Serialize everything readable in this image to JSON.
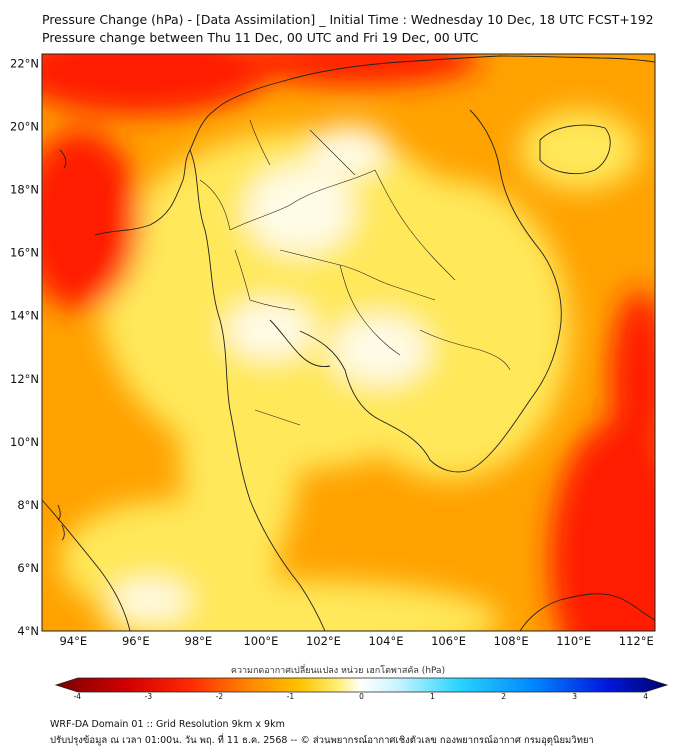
{
  "title": {
    "line1": "Pressure Change (hPa) - [Data Assimilation] _ Initial Time : Wednesday 10 Dec, 18 UTC FCST+192",
    "line2": "Pressure change between Thu 11 Dec, 00 UTC and Fri 19 Dec, 00 UTC"
  },
  "map": {
    "lat_labels": [
      "22°N",
      "20°N",
      "18°N",
      "16°N",
      "14°N",
      "12°N",
      "10°N",
      "8°N",
      "6°N",
      "4°N"
    ],
    "lon_labels": [
      "94°E",
      "96°E",
      "98°E",
      "100°E",
      "102°E",
      "104°E",
      "106°E",
      "108°E",
      "110°E",
      "112°E"
    ],
    "lat_range": [
      4,
      22.3
    ],
    "lon_range": [
      93,
      112.6
    ],
    "colors": {
      "ocean": "#ffa200",
      "land": "#ffe85a",
      "strong_fall": "#ff1e00",
      "light_core": "#fffbe6",
      "coast": "#222222"
    }
  },
  "colorbar": {
    "title": "ความกดอากาศเปลี่ยนแปลง หน่วย เฮกโตพาสคัล (hPa)",
    "ticks": [
      "-4",
      "-3",
      "-2",
      "-1",
      "0",
      "1",
      "2",
      "3",
      "4"
    ],
    "range": [
      -4.3,
      4.3
    ]
  },
  "footer": {
    "line1": "WRF-DA Domain 01 :: Grid Resolution 9km x 9km",
    "line2": "ปรับปรุงข้อมูล ณ เวลา 01:00น. วัน พฤ. ที่ 11 ธ.ค. 2568 -- © ส่วนพยากรณ์อากาศเชิงตัวเลข กองพยากรณ์อากาศ กรมอุตุนิยมวิทยา"
  }
}
